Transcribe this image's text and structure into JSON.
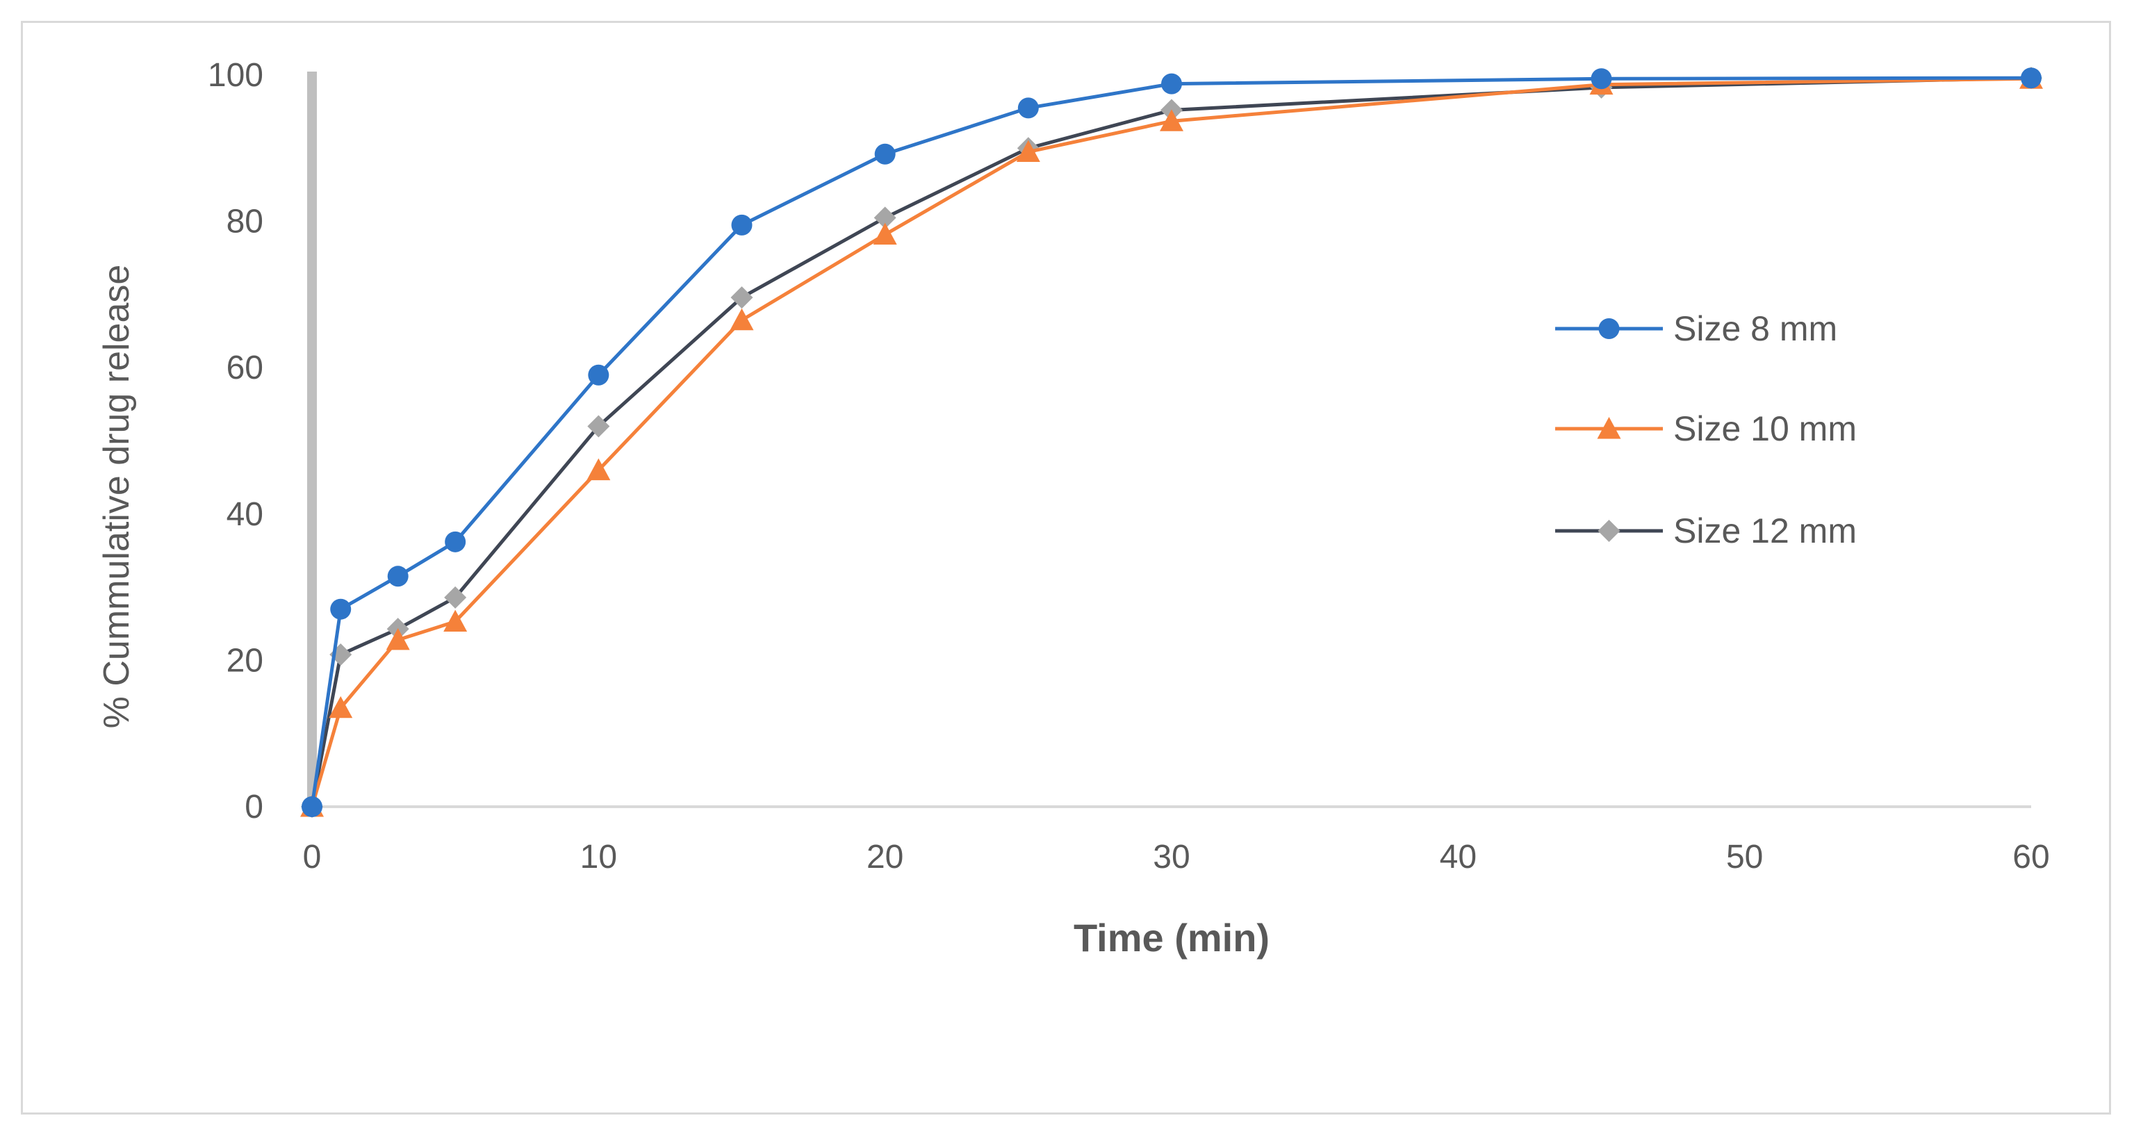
{
  "chart_data": {
    "type": "line",
    "title": "",
    "xlabel": "Time (min)",
    "ylabel": "% Cummulative drug release",
    "xlim": [
      0,
      60
    ],
    "ylim": [
      0,
      100
    ],
    "xticks": [
      0,
      10,
      20,
      30,
      40,
      50,
      60
    ],
    "yticks": [
      0,
      20,
      40,
      60,
      80,
      100
    ],
    "xtick_labels": [
      "0",
      "10",
      "20",
      "30",
      "40",
      "50",
      "60"
    ],
    "ytick_labels": [
      "0",
      "20",
      "40",
      "60",
      "80",
      "100"
    ],
    "grid": false,
    "legend_position": "right",
    "x": [
      0,
      1,
      3,
      5,
      10,
      15,
      20,
      25,
      30,
      45,
      60
    ],
    "series": [
      {
        "name": "Size 8 mm",
        "color": "#2e75c8",
        "marker": "circle",
        "values": [
          0,
          27,
          31.5,
          36.2,
          59,
          79.5,
          89.2,
          95.5,
          98.8,
          99.5,
          99.6
        ]
      },
      {
        "name": "Size 10 mm",
        "color": "#f5813a",
        "marker": "triangle",
        "values": [
          0,
          13.5,
          22.8,
          25.3,
          46,
          66.5,
          78.2,
          89.5,
          93.7,
          98.7,
          99.5
        ]
      },
      {
        "name": "Size 12 mm",
        "color": "#a6a6a6",
        "line_color": "#3f4654",
        "marker": "diamond",
        "values": [
          0,
          20.8,
          24.3,
          28.6,
          52,
          69.6,
          80.5,
          90,
          95.2,
          98.3,
          99.6
        ]
      }
    ]
  }
}
